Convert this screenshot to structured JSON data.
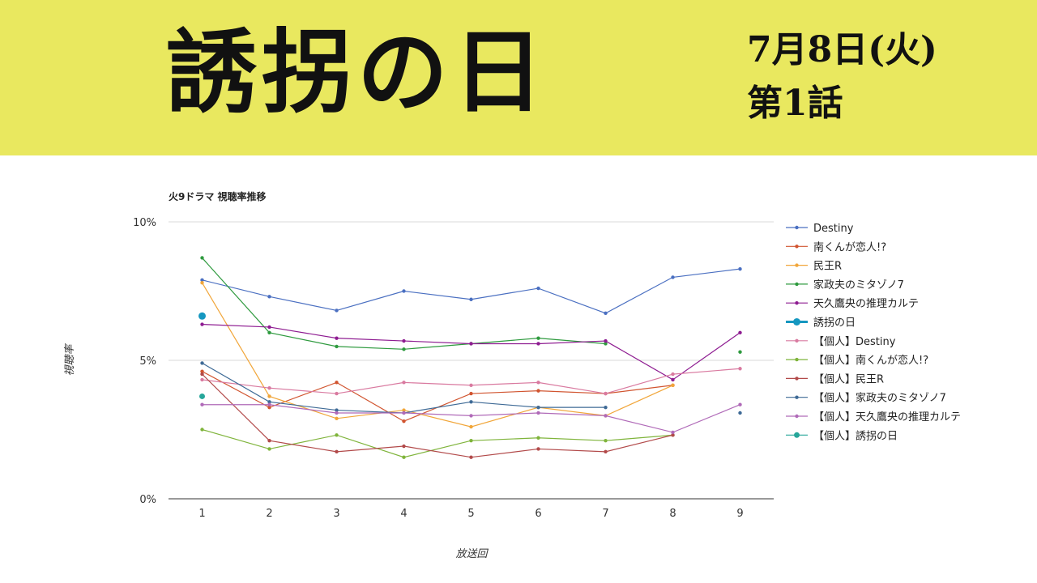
{
  "banner": {
    "title": "誘拐の日",
    "date": "7月8日(火)",
    "episode": "第1話",
    "background": "#e9e85f"
  },
  "chart_data": {
    "type": "line",
    "title": "火9ドラマ 視聴率推移",
    "xlabel": "放送回",
    "ylabel": "視聴率",
    "x": [
      1,
      2,
      3,
      4,
      5,
      6,
      7,
      8,
      9
    ],
    "ylim": [
      0,
      10
    ],
    "yticks": [
      "0%",
      "5%",
      "10%"
    ],
    "grid": true,
    "legend_position": "right",
    "series": [
      {
        "name": "Destiny",
        "color": "#4a6fc1",
        "values": [
          7.9,
          7.3,
          6.8,
          7.5,
          7.2,
          7.6,
          6.7,
          8.0,
          8.3
        ]
      },
      {
        "name": "南くんが恋人!?",
        "color": "#d1542f",
        "values": [
          4.6,
          3.3,
          4.2,
          2.8,
          3.8,
          3.9,
          3.8,
          4.1,
          null
        ]
      },
      {
        "name": "民王R",
        "color": "#f1a63a",
        "values": [
          7.8,
          3.7,
          2.9,
          3.2,
          2.6,
          3.3,
          3.0,
          4.1,
          null
        ]
      },
      {
        "name": "家政夫のミタゾノ7",
        "color": "#2e9a3e",
        "values": [
          8.7,
          6.0,
          5.5,
          5.4,
          5.6,
          5.8,
          5.6,
          null,
          5.3
        ]
      },
      {
        "name": "天久鷹央の推理カルテ",
        "color": "#8e1c91",
        "values": [
          6.3,
          6.2,
          5.8,
          5.7,
          5.6,
          5.6,
          5.7,
          4.3,
          6.0
        ]
      },
      {
        "name": "誘拐の日",
        "color": "#1597c0",
        "values": [
          6.6,
          null,
          null,
          null,
          null,
          null,
          null,
          null,
          null
        ],
        "emphasis": true
      },
      {
        "name": "【個人】Destiny",
        "color": "#d97aa0",
        "values": [
          4.3,
          4.0,
          3.8,
          4.2,
          4.1,
          4.2,
          3.8,
          4.5,
          4.7
        ]
      },
      {
        "name": "【個人】南くんが恋人!?",
        "color": "#7fb43b",
        "values": [
          2.5,
          1.8,
          2.3,
          1.5,
          2.1,
          2.2,
          2.1,
          2.3,
          null
        ]
      },
      {
        "name": "【個人】民王R",
        "color": "#b24a4a",
        "values": [
          4.5,
          2.1,
          1.7,
          1.9,
          1.5,
          1.8,
          1.7,
          2.3,
          null
        ]
      },
      {
        "name": "【個人】家政夫のミタゾノ7",
        "color": "#3e6a96",
        "values": [
          4.9,
          3.5,
          3.2,
          3.1,
          3.5,
          3.3,
          3.3,
          null,
          3.1
        ]
      },
      {
        "name": "【個人】天久鷹央の推理カルテ",
        "color": "#b06ab8",
        "values": [
          3.4,
          3.4,
          3.1,
          3.1,
          3.0,
          3.1,
          3.0,
          2.4,
          3.4
        ]
      },
      {
        "name": "【個人】誘拐の日",
        "color": "#26a69a",
        "values": [
          3.7,
          null,
          null,
          null,
          null,
          null,
          null,
          null,
          null
        ],
        "emphasis": true
      }
    ]
  }
}
